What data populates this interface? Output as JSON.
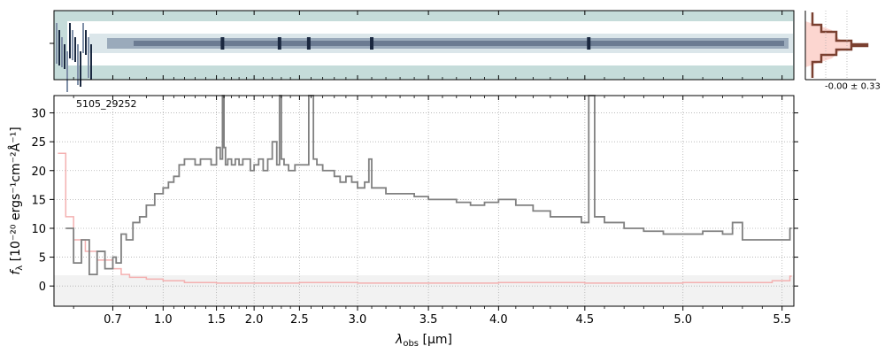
{
  "chart_data": {
    "type": "line",
    "label": "5105_29252",
    "xlabel_main": "λ",
    "xlabel_sub": "obs",
    "xlabel_unit": " [μm]",
    "ylabel_main": "f",
    "ylabel_sub": "λ",
    "ylabel_unit": " [10⁻²⁰ ergs⁻¹cm⁻²Å⁻¹]",
    "ylim": [
      -3.5,
      33
    ],
    "xlim": [
      0.55,
      5.53
    ],
    "x_ticks": [
      0.7,
      1.0,
      1.5,
      2.0,
      2.5,
      3.0,
      3.5,
      4.0,
      4.5,
      5.0,
      5.5
    ],
    "x_tick_labels": [
      "0.7",
      "1.0",
      "1.5",
      "2.0",
      "2.5",
      "3.0",
      "3.5",
      "4.0",
      "4.5",
      "5.0",
      "5.5"
    ],
    "y_ticks": [
      0,
      5,
      10,
      15,
      20,
      25,
      30
    ],
    "y_tick_labels": [
      "0",
      "5",
      "10",
      "15",
      "20",
      "25",
      "30"
    ],
    "grid": true,
    "side_annotation": "-0.00 ± 0.33",
    "colors": {
      "flux": "#808080",
      "error": "#f4b0b0",
      "grid": "#b0b0b0",
      "image_bg": "#c5dcda",
      "trace_dark": "#1a2840",
      "profile": "#7a4030",
      "profile_fill": "#fcd6d0"
    },
    "series": [
      {
        "name": "",
        "x": [
          0.58,
          0.6,
          0.62,
          0.64,
          0.66,
          0.68,
          0.7,
          0.72,
          0.75,
          0.78,
          0.82,
          0.86,
          0.9,
          0.95,
          1.0,
          1.05,
          1.1,
          1.15,
          1.2,
          1.25,
          1.3,
          1.35,
          1.4,
          1.45,
          1.5,
          1.55,
          1.58,
          1.6,
          1.62,
          1.65,
          1.7,
          1.75,
          1.8,
          1.85,
          1.9,
          1.95,
          2.0,
          2.05,
          2.1,
          2.15,
          2.2,
          2.25,
          2.28,
          2.3,
          2.33,
          2.38,
          2.45,
          2.5,
          2.55,
          2.58,
          2.62,
          2.65,
          2.7,
          2.75,
          2.8,
          2.85,
          2.9,
          2.95,
          3.0,
          3.05,
          3.08,
          3.1,
          3.15,
          3.2,
          3.3,
          3.4,
          3.5,
          3.6,
          3.7,
          3.8,
          3.9,
          4.0,
          4.1,
          4.2,
          4.3,
          4.4,
          4.48,
          4.52,
          4.55,
          4.6,
          4.7,
          4.8,
          4.9,
          5.0,
          5.1,
          5.2,
          5.25,
          5.3,
          5.4,
          5.5,
          5.52
        ],
        "values": [
          10,
          4,
          8,
          2,
          6,
          3,
          5,
          4,
          9,
          8,
          11,
          12,
          14,
          16,
          17,
          18,
          19,
          21,
          22,
          22,
          21,
          22,
          22,
          21,
          24,
          22,
          33,
          24,
          21,
          22,
          21,
          22,
          21,
          22,
          22,
          20,
          21,
          22,
          20,
          22,
          25,
          21,
          33,
          22,
          21,
          20,
          21,
          21,
          21,
          33,
          22,
          21,
          20,
          20,
          19,
          18,
          19,
          18,
          17,
          18,
          22,
          17,
          17,
          16,
          16,
          15.5,
          15,
          15,
          14.5,
          14,
          14.5,
          15,
          14,
          13,
          12,
          12,
          11,
          33,
          12,
          11,
          10,
          9.5,
          9,
          9,
          9.5,
          9,
          11,
          8,
          8,
          8,
          10
        ]
      },
      {
        "name": "",
        "x": [
          0.56,
          0.58,
          0.6,
          0.63,
          0.66,
          0.7,
          0.75,
          0.8,
          0.9,
          1.0,
          1.2,
          1.5,
          2.0,
          2.5,
          3.0,
          3.5,
          4.0,
          4.5,
          5.0,
          5.3,
          5.45,
          5.52
        ],
        "values": [
          23,
          12,
          8,
          6,
          4.5,
          3,
          2,
          1.5,
          1.2,
          0.9,
          0.6,
          0.5,
          0.5,
          0.6,
          0.5,
          0.5,
          0.6,
          0.5,
          0.6,
          0.6,
          0.9,
          1.7
        ]
      }
    ]
  }
}
